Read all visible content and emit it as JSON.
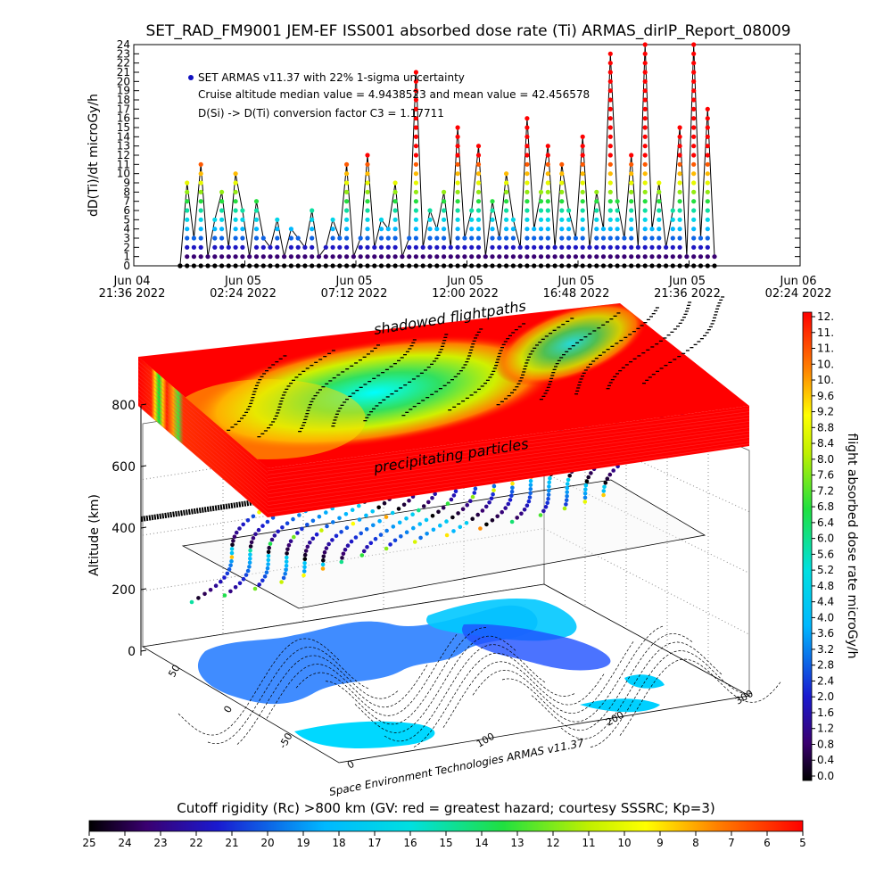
{
  "title": "SET_RAD_FM9001  JEM-EF ISS001 absorbed dose rate (Ti) ARMAS_dirIP_Report_08009",
  "colors": {
    "series_black": "#000000",
    "cruise_dot": "#1010c0",
    "axis": "#000000",
    "shadow": "#000000"
  },
  "chart_data": [
    {
      "type": "line",
      "ylabel": "dD(Ti)/dt microGy/h",
      "ylim": [
        0,
        24
      ],
      "y_ticks": [
        "0",
        "1",
        "2",
        "3",
        "4",
        "5",
        "6",
        "7",
        "8",
        "9",
        "10",
        "11",
        "12",
        "13",
        "14",
        "15",
        "16",
        "17",
        "18",
        "19",
        "20",
        "21",
        "22",
        "23",
        "24"
      ],
      "x_ticks": [
        {
          "top": "Jun 04",
          "bottom": "21:36  2022"
        },
        {
          "top": "Jun 05",
          "bottom": "02:24  2022"
        },
        {
          "top": "Jun 05",
          "bottom": "07:12  2022"
        },
        {
          "top": "Jun 05",
          "bottom": "12:00  2022"
        },
        {
          "top": "Jun 05",
          "bottom": "16:48  2022"
        },
        {
          "top": "Jun 05",
          "bottom": "21:36  2022"
        },
        {
          "top": "Jun 06",
          "bottom": "02:24  2022"
        }
      ],
      "xlim_hours": [
        0,
        28.8
      ],
      "legend": [
        "SET ARMAS v11.37 with 22% 1-sigma uncertainty",
        "Cruise altitude median value = 4.9438523 and mean value = 42.456578",
        "D(Si) -> D(Ti) conversion factor C3 = 1.17711"
      ],
      "series": [
        {
          "x_hours": [
            2.0,
            2.3,
            2.6,
            2.9,
            3.2,
            3.5,
            3.8,
            4.1,
            4.4,
            4.7,
            5.0,
            5.3,
            5.6,
            5.9,
            6.2,
            6.5,
            6.8,
            7.1,
            7.4,
            7.7,
            8.0,
            8.3,
            8.6,
            8.9,
            9.2,
            9.5,
            9.8,
            10.1,
            10.4,
            10.7,
            11.0,
            11.3,
            11.6,
            11.9,
            12.2,
            12.5,
            12.8,
            13.1,
            13.4,
            13.7,
            14.0,
            14.3,
            14.6,
            14.9,
            15.2,
            15.5,
            15.8,
            16.1,
            16.4,
            16.7,
            17.0,
            17.3,
            17.6,
            17.9,
            18.2,
            18.5,
            18.8,
            19.1,
            19.4,
            19.7,
            20.0,
            20.3,
            20.6,
            20.9,
            21.2,
            21.5,
            21.8,
            22.1,
            22.4,
            22.7,
            23.0,
            23.3,
            23.6,
            23.9,
            24.2,
            24.5,
            24.8,
            25.1
          ],
          "values": [
            0,
            9,
            3,
            11,
            1,
            5,
            8,
            2,
            10,
            6,
            1,
            7,
            3,
            2,
            5,
            1,
            4,
            3,
            2,
            6,
            1,
            2,
            5,
            3,
            11,
            1,
            3,
            12,
            2,
            5,
            4,
            9,
            1,
            3,
            21,
            2,
            6,
            4,
            8,
            2,
            15,
            3,
            6,
            13,
            1,
            7,
            3,
            10,
            5,
            2,
            16,
            4,
            8,
            13,
            2,
            11,
            6,
            3,
            14,
            2,
            8,
            4,
            23,
            7,
            3,
            12,
            2,
            24,
            4,
            9,
            2,
            6,
            15,
            1,
            24,
            3,
            17,
            1
          ]
        }
      ]
    },
    {
      "type": "heatmap",
      "title": "Cutoff rigidity (Rc) >800 km (GV: red = greatest hazard; courtesy SSSRC; Kp=3)",
      "ylabel": "Altitude (km)",
      "z_ticks": [
        "0",
        "200",
        "400",
        "600",
        "800"
      ],
      "lat_ticks": [
        "50",
        "0",
        "-50"
      ],
      "lon_ticks": [
        "0",
        "100",
        "200",
        "300"
      ],
      "annotations": [
        "shadowed flightpaths",
        "precipitating particles"
      ],
      "credit": "Space Environment Technologies ARMAS v11.37",
      "colorbar_dose": {
        "label": "flight absorbed dose rate microGy/h",
        "range": [
          0,
          12
        ],
        "ticks": [
          "12.",
          "11.",
          "11.",
          "10.",
          "10.",
          "9.6",
          "9.2",
          "8.8",
          "8.4",
          "8.0",
          "7.6",
          "7.2",
          "6.8",
          "6.4",
          "6.0",
          "5.6",
          "5.2",
          "4.8",
          "4.4",
          "4.0",
          "3.6",
          "3.2",
          "2.8",
          "2.4",
          "2.0",
          "1.6",
          "1.2",
          "0.8",
          "0.4",
          "0.0"
        ]
      },
      "colorbar_rc": {
        "range": [
          25,
          5
        ],
        "ticks": [
          "25",
          "24",
          "23",
          "22",
          "21",
          "20",
          "19",
          "18",
          "17",
          "16",
          "15",
          "14",
          "13",
          "12",
          "11",
          "10",
          "9",
          "8",
          "7",
          "6",
          "5"
        ]
      }
    }
  ]
}
